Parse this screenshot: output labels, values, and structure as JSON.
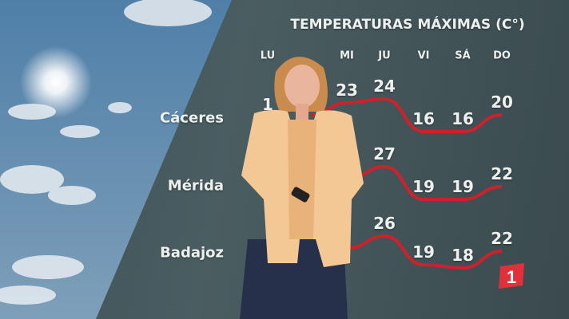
{
  "title": "TEMPERATURAS MÁXIMAS (C°)",
  "days": [
    "LU",
    "MI",
    "JU",
    "VI",
    "SÁ",
    "DO"
  ],
  "cities": [
    {
      "name": "Cáceres",
      "values": {
        "LU": "1",
        "MI": "23",
        "JU": "24",
        "VI": "16",
        "SÁ": "16",
        "DO": "20"
      }
    },
    {
      "name": "Mérida",
      "values": {
        "JU": "27",
        "VI": "19",
        "SÁ": "19",
        "DO": "22"
      }
    },
    {
      "name": "Badajoz",
      "values": {
        "JU": "26",
        "VI": "19",
        "SÁ": "18",
        "DO": "22"
      }
    }
  ],
  "channel_logo": "1",
  "colors": {
    "curve": "#d0202c",
    "logo": "#e0303a",
    "text": "#eef0ee"
  }
}
